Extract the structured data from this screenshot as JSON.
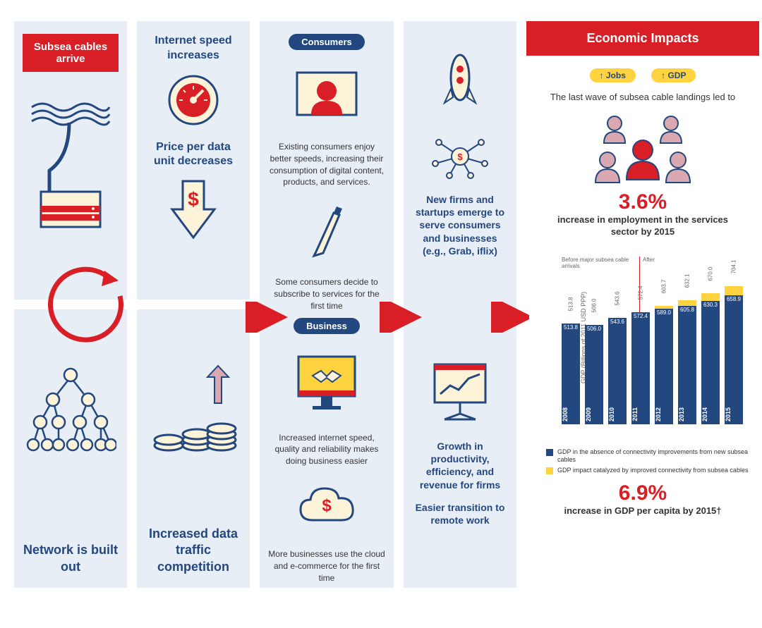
{
  "colors": {
    "red": "#d91e25",
    "navy": "#23477f",
    "yellow": "#ffd23f",
    "panel": "#e8eef5",
    "cream": "#fdf3d9"
  },
  "col1": {
    "top": {
      "badge": "Subsea cables arrive"
    },
    "bottom": {
      "title": "Network is built out"
    }
  },
  "col2": {
    "top": {
      "t1": "Internet speed increases",
      "t2": "Price per data unit decreases"
    },
    "bottom": {
      "title": "Increased data traffic competition"
    }
  },
  "col3": {
    "pill1": "Consumers",
    "p1": "Existing consumers enjoy better speeds, increasing their consumption of digital content, products, and services.",
    "p2": "Some consumers decide to subscribe to services for the first time",
    "pill2": "Business",
    "p3": "Increased internet speed, quality and reliability makes doing business easier",
    "p4": "More businesses use the cloud and e-commerce for the first time"
  },
  "col4": {
    "p1": "New firms and startups emerge to serve consumers and businesses (e.g., Grab, iflix)",
    "p2": "Growth in productivity, efficiency, and revenue for firms",
    "p3": "Easier transition to remote work"
  },
  "econ": {
    "header": "Economic Impacts",
    "jobs_pill": "↑ Jobs",
    "gdp_pill": "↑ GDP",
    "lead": "The last wave of subsea cable landings led to",
    "stat1_num": "3.6%",
    "stat1_label": "increase in employment in the services sector by 2015",
    "stat2_num": "6.9%",
    "stat2_label": "increase in GDP per capita by 2015†",
    "chart": {
      "ylabel": "GDP (Billions of 2011 USD PPP)",
      "before_label": "Before major subsea cable arrivals",
      "after_label": "After",
      "ymax": 720,
      "years": [
        "2008",
        "2009",
        "2010",
        "2011",
        "2012",
        "2013",
        "2014",
        "2015"
      ],
      "base": [
        513.8,
        506.0,
        543.6,
        572.4,
        589.0,
        605.8,
        630.3,
        658.9
      ],
      "total": [
        513.8,
        506.0,
        543.6,
        572.4,
        603.7,
        632.1,
        670.0,
        704.1
      ],
      "divider_after_index": 3,
      "legend1": "GDP in the absence of connectivity improvements from new subsea cables",
      "legend2": "GDP impact catalyzed by improved connectivity from subsea cables"
    }
  }
}
